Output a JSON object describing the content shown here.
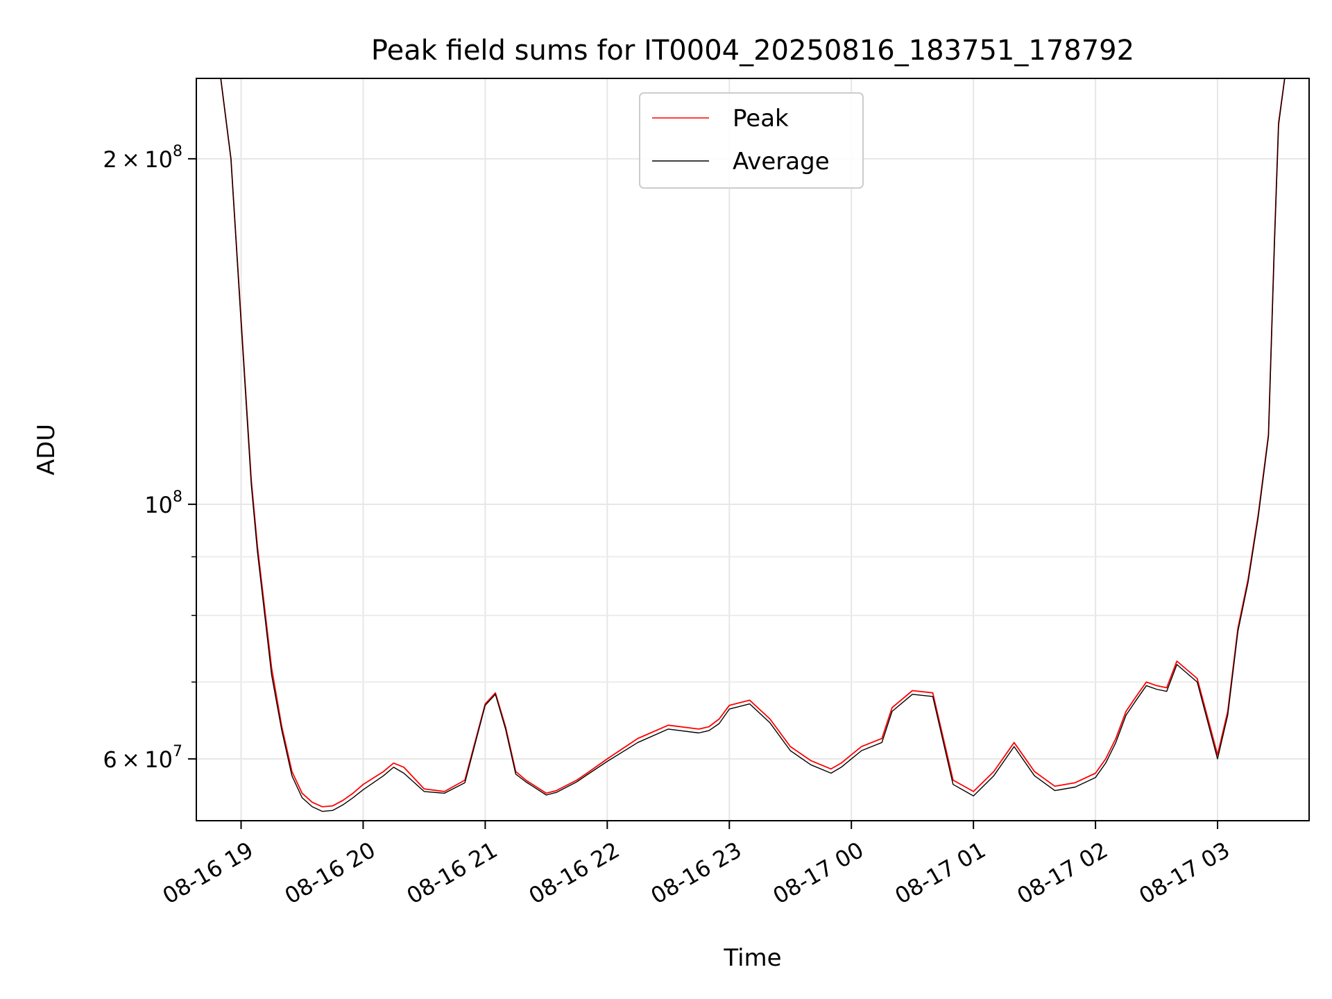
{
  "chart_data": {
    "type": "line",
    "title": "Peak field sums for IT0004_20250816_183751_178792",
    "xlabel": "Time",
    "ylabel": "ADU",
    "yscale": "log",
    "grid": true,
    "legend_position": "top-center",
    "xlim": [
      "2025-08-16T18:38",
      "2025-08-17T03:45"
    ],
    "ylim": [
      53000000,
      235000000
    ],
    "xticks": [
      {
        "t": "2025-08-16T19:00",
        "label": "08-16 19"
      },
      {
        "t": "2025-08-16T20:00",
        "label": "08-16 20"
      },
      {
        "t": "2025-08-16T21:00",
        "label": "08-16 21"
      },
      {
        "t": "2025-08-16T22:00",
        "label": "08-16 22"
      },
      {
        "t": "2025-08-16T23:00",
        "label": "08-16 23"
      },
      {
        "t": "2025-08-17T00:00",
        "label": "08-17 00"
      },
      {
        "t": "2025-08-17T01:00",
        "label": "08-17 01"
      },
      {
        "t": "2025-08-17T02:00",
        "label": "08-17 02"
      },
      {
        "t": "2025-08-17T03:00",
        "label": "08-17 03"
      }
    ],
    "yticks_major": [
      {
        "v": 60000000,
        "base": "6",
        "exp": "7"
      },
      {
        "v": 100000000,
        "base": "",
        "exp": "8"
      },
      {
        "v": 200000000,
        "base": "2",
        "exp": "8"
      }
    ],
    "yticks_minor": [
      70000000,
      80000000,
      90000000
    ],
    "series": [
      {
        "name": "Peak",
        "color": "#ff0000",
        "x": [
          "2025-08-16T18:50",
          "2025-08-16T18:55",
          "2025-08-16T19:00",
          "2025-08-16T19:05",
          "2025-08-16T19:08",
          "2025-08-16T19:12",
          "2025-08-16T19:15",
          "2025-08-16T19:20",
          "2025-08-16T19:25",
          "2025-08-16T19:30",
          "2025-08-16T19:35",
          "2025-08-16T19:40",
          "2025-08-16T19:45",
          "2025-08-16T19:50",
          "2025-08-16T19:55",
          "2025-08-16T20:00",
          "2025-08-16T20:10",
          "2025-08-16T20:15",
          "2025-08-16T20:20",
          "2025-08-16T20:30",
          "2025-08-16T20:40",
          "2025-08-16T20:50",
          "2025-08-16T21:00",
          "2025-08-16T21:05",
          "2025-08-16T21:10",
          "2025-08-16T21:15",
          "2025-08-16T21:20",
          "2025-08-16T21:30",
          "2025-08-16T21:35",
          "2025-08-16T21:45",
          "2025-08-16T21:50",
          "2025-08-16T22:00",
          "2025-08-16T22:15",
          "2025-08-16T22:30",
          "2025-08-16T22:45",
          "2025-08-16T22:50",
          "2025-08-16T22:55",
          "2025-08-16T23:00",
          "2025-08-16T23:10",
          "2025-08-16T23:20",
          "2025-08-16T23:30",
          "2025-08-16T23:40",
          "2025-08-16T23:50",
          "2025-08-16T23:55",
          "2025-08-17T00:00",
          "2025-08-17T00:05",
          "2025-08-17T00:15",
          "2025-08-17T00:20",
          "2025-08-17T00:30",
          "2025-08-17T00:40",
          "2025-08-17T00:50",
          "2025-08-17T01:00",
          "2025-08-17T01:10",
          "2025-08-17T01:20",
          "2025-08-17T01:30",
          "2025-08-17T01:40",
          "2025-08-17T01:50",
          "2025-08-17T02:00",
          "2025-08-17T02:05",
          "2025-08-17T02:10",
          "2025-08-17T02:15",
          "2025-08-17T02:20",
          "2025-08-17T02:25",
          "2025-08-17T02:30",
          "2025-08-17T02:35",
          "2025-08-17T02:40",
          "2025-08-17T02:50",
          "2025-08-17T03:00",
          "2025-08-17T03:05",
          "2025-08-17T03:10",
          "2025-08-17T03:15",
          "2025-08-17T03:20",
          "2025-08-17T03:25",
          "2025-08-17T03:28",
          "2025-08-17T03:30",
          "2025-08-17T03:33"
        ],
        "values": [
          235000000,
          200000000,
          145000000,
          105000000,
          92000000,
          80000000,
          72000000,
          64000000,
          58500000,
          56000000,
          55000000,
          54500000,
          54600000,
          55200000,
          56000000,
          57000000,
          58500000,
          59500000,
          59000000,
          56500000,
          56200000,
          57500000,
          67000000,
          68500000,
          64000000,
          58500000,
          57500000,
          56000000,
          56300000,
          57500000,
          58300000,
          60000000,
          62500000,
          64200000,
          63700000,
          64000000,
          65000000,
          66800000,
          67500000,
          65000000,
          61500000,
          59800000,
          58800000,
          59500000,
          60500000,
          61500000,
          62500000,
          66500000,
          68800000,
          68500000,
          57500000,
          56200000,
          58500000,
          62000000,
          58500000,
          56800000,
          57200000,
          58300000,
          60000000,
          62500000,
          66000000,
          68000000,
          70000000,
          69500000,
          69200000,
          73000000,
          70500000,
          60500000,
          66000000,
          78000000,
          86000000,
          98000000,
          115000000,
          170000000,
          215000000,
          235000000
        ]
      },
      {
        "name": "Average",
        "color": "#000000",
        "x": [
          "2025-08-16T18:50",
          "2025-08-16T18:55",
          "2025-08-16T19:00",
          "2025-08-16T19:05",
          "2025-08-16T19:08",
          "2025-08-16T19:12",
          "2025-08-16T19:15",
          "2025-08-16T19:20",
          "2025-08-16T19:25",
          "2025-08-16T19:30",
          "2025-08-16T19:35",
          "2025-08-16T19:40",
          "2025-08-16T19:45",
          "2025-08-16T19:50",
          "2025-08-16T19:55",
          "2025-08-16T20:00",
          "2025-08-16T20:10",
          "2025-08-16T20:15",
          "2025-08-16T20:20",
          "2025-08-16T20:30",
          "2025-08-16T20:40",
          "2025-08-16T20:50",
          "2025-08-16T21:00",
          "2025-08-16T21:05",
          "2025-08-16T21:10",
          "2025-08-16T21:15",
          "2025-08-16T21:20",
          "2025-08-16T21:30",
          "2025-08-16T21:35",
          "2025-08-16T21:45",
          "2025-08-16T21:50",
          "2025-08-16T22:00",
          "2025-08-16T22:15",
          "2025-08-16T22:30",
          "2025-08-16T22:45",
          "2025-08-16T22:50",
          "2025-08-16T22:55",
          "2025-08-16T23:00",
          "2025-08-16T23:10",
          "2025-08-16T23:20",
          "2025-08-16T23:30",
          "2025-08-16T23:40",
          "2025-08-16T23:50",
          "2025-08-16T23:55",
          "2025-08-17T00:00",
          "2025-08-17T00:05",
          "2025-08-17T00:15",
          "2025-08-17T00:20",
          "2025-08-17T00:30",
          "2025-08-17T00:40",
          "2025-08-17T00:50",
          "2025-08-17T01:00",
          "2025-08-17T01:10",
          "2025-08-17T01:20",
          "2025-08-17T01:30",
          "2025-08-17T01:40",
          "2025-08-17T01:50",
          "2025-08-17T02:00",
          "2025-08-17T02:05",
          "2025-08-17T02:10",
          "2025-08-17T02:15",
          "2025-08-17T02:20",
          "2025-08-17T02:25",
          "2025-08-17T02:30",
          "2025-08-17T02:35",
          "2025-08-17T02:40",
          "2025-08-17T02:50",
          "2025-08-17T03:00",
          "2025-08-17T03:05",
          "2025-08-17T03:10",
          "2025-08-17T03:15",
          "2025-08-17T03:20",
          "2025-08-17T03:25",
          "2025-08-17T03:28",
          "2025-08-17T03:30",
          "2025-08-17T03:33"
        ],
        "values": [
          235000000,
          200000000,
          144000000,
          104000000,
          91000000,
          79000000,
          71000000,
          63500000,
          58000000,
          55500000,
          54500000,
          54000000,
          54100000,
          54700000,
          55500000,
          56400000,
          58000000,
          59000000,
          58300000,
          56200000,
          56000000,
          57200000,
          66800000,
          68300000,
          63700000,
          58200000,
          57300000,
          55800000,
          56100000,
          57300000,
          58100000,
          59700000,
          62000000,
          63700000,
          63200000,
          63500000,
          64400000,
          66300000,
          67000000,
          64500000,
          61000000,
          59300000,
          58300000,
          59000000,
          60000000,
          61000000,
          62000000,
          66000000,
          68300000,
          68000000,
          57000000,
          55700000,
          58000000,
          61500000,
          58000000,
          56300000,
          56700000,
          57800000,
          59500000,
          62000000,
          65500000,
          67500000,
          69500000,
          69000000,
          68700000,
          72500000,
          70000000,
          60000000,
          65500000,
          77500000,
          85500000,
          97500000,
          114500000,
          169000000,
          214000000,
          235000000
        ]
      }
    ]
  }
}
